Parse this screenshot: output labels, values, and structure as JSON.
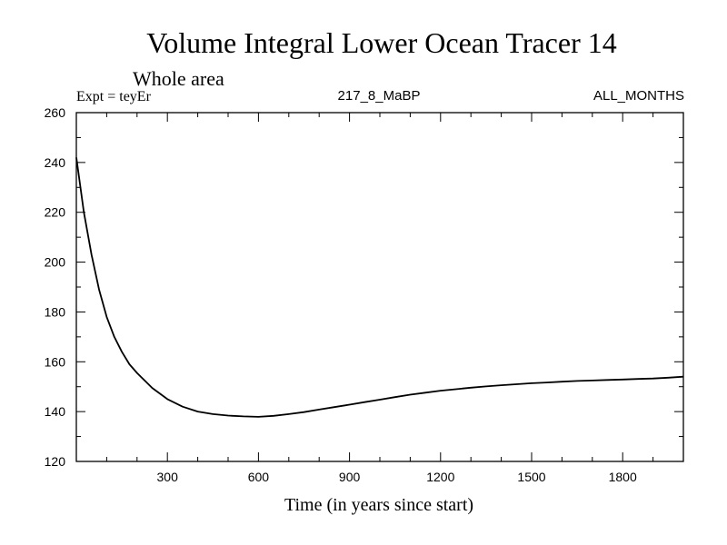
{
  "chart_data": {
    "type": "line",
    "title": "Volume Integral Lower Ocean Tracer 14",
    "subtitle": "Whole area",
    "annotations": {
      "left": "Expt = teyEr",
      "center": "217_8_MaBP",
      "right": "ALL_MONTHS"
    },
    "xlabel": "Time (in years since start)",
    "ylabel": "",
    "xlim": [
      0,
      2000
    ],
    "ylim": [
      120,
      260
    ],
    "xticks": [
      300,
      600,
      900,
      1200,
      1500,
      1800
    ],
    "yticks": [
      120,
      140,
      160,
      180,
      200,
      220,
      240,
      260
    ],
    "series": [
      {
        "name": "teyEr",
        "x": [
          0,
          25,
          50,
          75,
          100,
          125,
          150,
          175,
          200,
          250,
          300,
          350,
          400,
          450,
          500,
          550,
          600,
          650,
          700,
          750,
          800,
          850,
          900,
          950,
          1000,
          1050,
          1100,
          1150,
          1200,
          1250,
          1300,
          1350,
          1400,
          1450,
          1500,
          1550,
          1600,
          1650,
          1700,
          1750,
          1800,
          1850,
          1900,
          1950,
          2000
        ],
        "values": [
          242,
          220,
          203,
          189,
          178,
          170,
          164,
          159,
          155.5,
          149.5,
          145,
          142,
          140,
          139,
          138.4,
          138.1,
          137.9,
          138.3,
          139,
          139.8,
          140.8,
          141.8,
          142.8,
          143.8,
          144.8,
          145.8,
          146.8,
          147.6,
          148.4,
          149,
          149.6,
          150.1,
          150.6,
          151,
          151.4,
          151.7,
          152,
          152.3,
          152.5,
          152.7,
          152.9,
          153.1,
          153.3,
          153.6,
          154
        ]
      }
    ]
  }
}
